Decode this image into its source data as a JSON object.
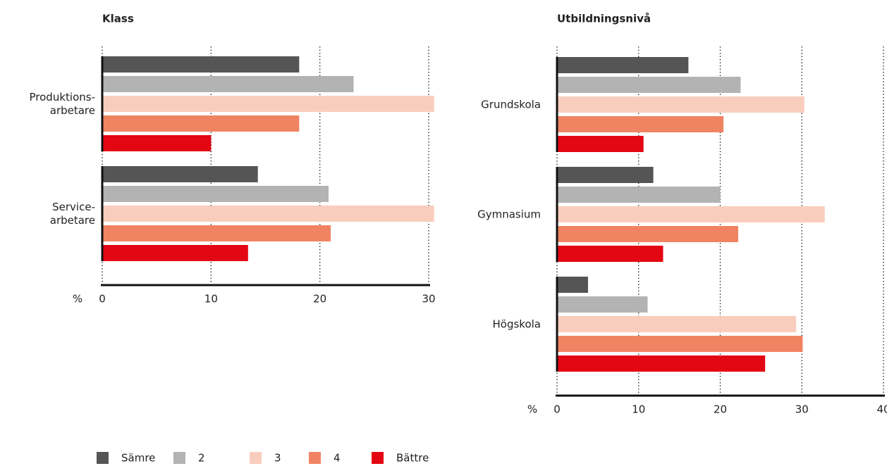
{
  "chart_data": [
    {
      "type": "bar",
      "orientation": "horizontal",
      "title": "Klass",
      "categories": [
        [
          "Produktions-",
          "arbetare"
        ],
        [
          "Service-",
          "arbetare"
        ]
      ],
      "series": [
        {
          "name": "Sämre",
          "color": "#555555",
          "values": [
            18.1,
            14.3
          ]
        },
        {
          "name": "2",
          "color": "#b3b3b3",
          "values": [
            23.1,
            20.8
          ]
        },
        {
          "name": "3",
          "color": "#f9cdbd",
          "values": [
            30.5,
            30.5
          ]
        },
        {
          "name": "4",
          "color": "#f08462",
          "values": [
            18.1,
            21.0
          ]
        },
        {
          "name": "Bättre",
          "color": "#e30613",
          "values": [
            10.0,
            13.4
          ]
        }
      ],
      "xlabel": "%",
      "xlim": [
        0,
        30
      ],
      "xticks": [
        0,
        10,
        20,
        30
      ],
      "grid": true
    },
    {
      "type": "bar",
      "orientation": "horizontal",
      "title": "Utbildningsnivå",
      "categories": [
        [
          "Grundskola"
        ],
        [
          "Gymnasium"
        ],
        [
          "Högskola"
        ]
      ],
      "series": [
        {
          "name": "Sämre",
          "color": "#555555",
          "values": [
            16.1,
            11.8,
            3.8
          ]
        },
        {
          "name": "2",
          "color": "#b3b3b3",
          "values": [
            22.5,
            20.0,
            11.1
          ]
        },
        {
          "name": "3",
          "color": "#f9cdbd",
          "values": [
            30.3,
            32.8,
            29.3
          ]
        },
        {
          "name": "4",
          "color": "#f08462",
          "values": [
            20.4,
            22.2,
            30.1
          ]
        },
        {
          "name": "Bättre",
          "color": "#e30613",
          "values": [
            10.6,
            13.0,
            25.5
          ]
        }
      ],
      "xlabel": "%",
      "xlim": [
        0,
        40
      ],
      "xticks": [
        0,
        10,
        20,
        30,
        40
      ],
      "grid": true
    }
  ]
}
